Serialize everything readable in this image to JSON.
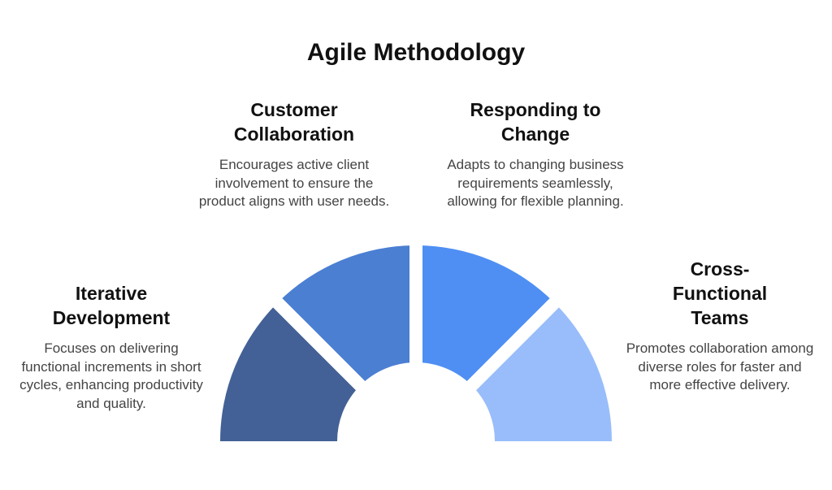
{
  "title": "Agile Methodology",
  "segments": [
    {
      "key": "iterative",
      "heading": "Iterative Development",
      "description": "Focuses on delivering functional increments in short cycles, enhancing productivity and quality.",
      "color": "#436196"
    },
    {
      "key": "collaboration",
      "heading": "Customer Collaboration",
      "description": "Encourages active client involvement to ensure the product aligns with user needs.",
      "color": "#4b7fd2"
    },
    {
      "key": "change",
      "heading": "Responding to Change",
      "description": "Adapts to changing business requirements seamlessly, allowing for flexible planning.",
      "color": "#4f8ff3"
    },
    {
      "key": "cross",
      "heading": "Cross-Functional Teams",
      "description": "Promotes collaboration among diverse roles for faster and more effective delivery.",
      "color": "#98bdfa"
    }
  ]
}
